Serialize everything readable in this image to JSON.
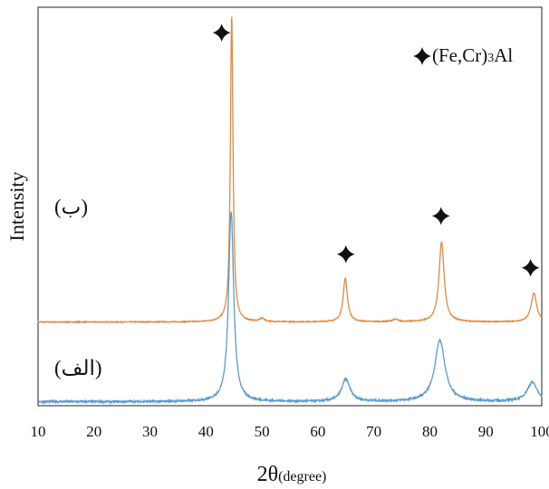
{
  "chart_data": {
    "type": "line",
    "xlabel_main": "2θ",
    "xlabel_sub": "(degree)",
    "ylabel": "Intensity",
    "xlim": [
      10,
      100
    ],
    "xticks": [
      "10",
      "20",
      "30",
      "40",
      "50",
      "60",
      "70",
      "80",
      "90",
      "100"
    ],
    "grid": false,
    "legend": {
      "placement": "top-right",
      "label_main": "(Fe,Cr)",
      "label_sub": "3",
      "label_end": "Al",
      "marker": "four-point-star"
    },
    "series": [
      {
        "name": "ب",
        "label": "(ب)",
        "color": "#E08A43",
        "baseline": 1.0,
        "noise": 0.006,
        "peaks": [
          {
            "x": 44.6,
            "height": 3.85,
            "width": 0.28
          },
          {
            "x": 50.0,
            "height": 0.04,
            "width": 0.5
          },
          {
            "x": 64.9,
            "height": 0.55,
            "width": 0.45
          },
          {
            "x": 73.8,
            "height": 0.03,
            "width": 0.6
          },
          {
            "x": 82.1,
            "height": 1.0,
            "width": 0.55
          },
          {
            "x": 98.6,
            "height": 0.36,
            "width": 0.6
          }
        ]
      },
      {
        "name": "الف",
        "label": "(الف)",
        "color": "#5B9BD0",
        "baseline": 0.0,
        "noise": 0.012,
        "peaks": [
          {
            "x": 44.5,
            "height": 2.38,
            "width": 0.55
          },
          {
            "x": 65.0,
            "height": 0.28,
            "width": 0.9
          },
          {
            "x": 81.8,
            "height": 0.77,
            "width": 1.1
          },
          {
            "x": 98.3,
            "height": 0.24,
            "width": 1.1
          }
        ]
      }
    ],
    "markers": [
      {
        "x": 42.8,
        "y": 4.63
      },
      {
        "x": 65.0,
        "y": 1.85
      },
      {
        "x": 82.0,
        "y": 2.33
      },
      {
        "x": 98.0,
        "y": 1.68
      }
    ],
    "ylim": [
      -0.05,
      4.95
    ]
  }
}
